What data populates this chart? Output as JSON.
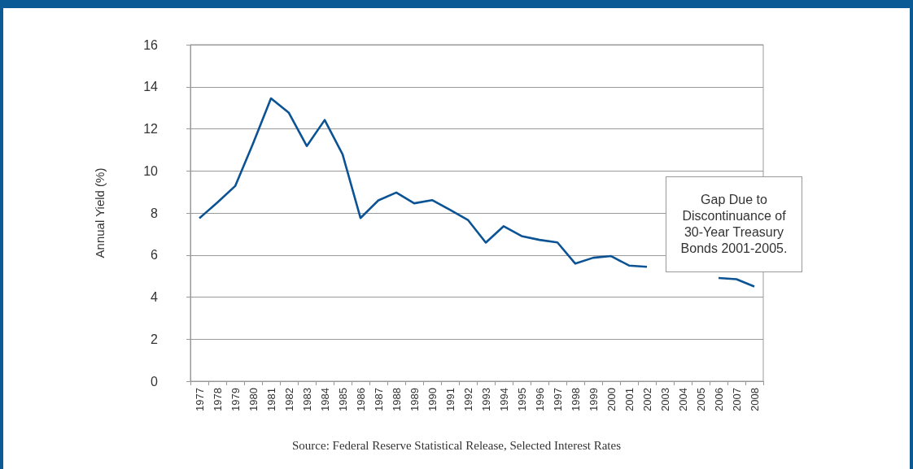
{
  "chart_data": {
    "type": "line",
    "ylabel": "Annual Yield (%)",
    "categories": [
      "1977",
      "1978",
      "1979",
      "1980",
      "1981",
      "1982",
      "1983",
      "1984",
      "1985",
      "1986",
      "1987",
      "1988",
      "1989",
      "1990",
      "1991",
      "1992",
      "1993",
      "1994",
      "1995",
      "1996",
      "1997",
      "1998",
      "1999",
      "2000",
      "2001",
      "2002",
      "2003",
      "2004",
      "2005",
      "2006",
      "2007",
      "2008"
    ],
    "series": [
      {
        "color": "#0b5394",
        "values": [
          7.75,
          8.49,
          9.28,
          11.3,
          13.45,
          12.76,
          11.18,
          12.42,
          10.79,
          7.76,
          8.6,
          8.97,
          8.46,
          8.61,
          8.15,
          7.67,
          6.59,
          7.37,
          6.9,
          6.72,
          6.6,
          5.59,
          5.87,
          5.95,
          5.5,
          5.44,
          null,
          null,
          null,
          4.91,
          4.85,
          4.5
        ]
      }
    ],
    "ylim": [
      0,
      16
    ],
    "yticks": [
      0,
      2,
      4,
      6,
      8,
      10,
      12,
      14,
      16
    ],
    "grid": "y",
    "line_style": "solid",
    "annotations": [
      "Gap Due to Discontinuance of 30-Year Treasury Bonds 2001-2005.",
      "Source: Federal Reserve Statistical Release, Selected Interest Rates"
    ]
  }
}
